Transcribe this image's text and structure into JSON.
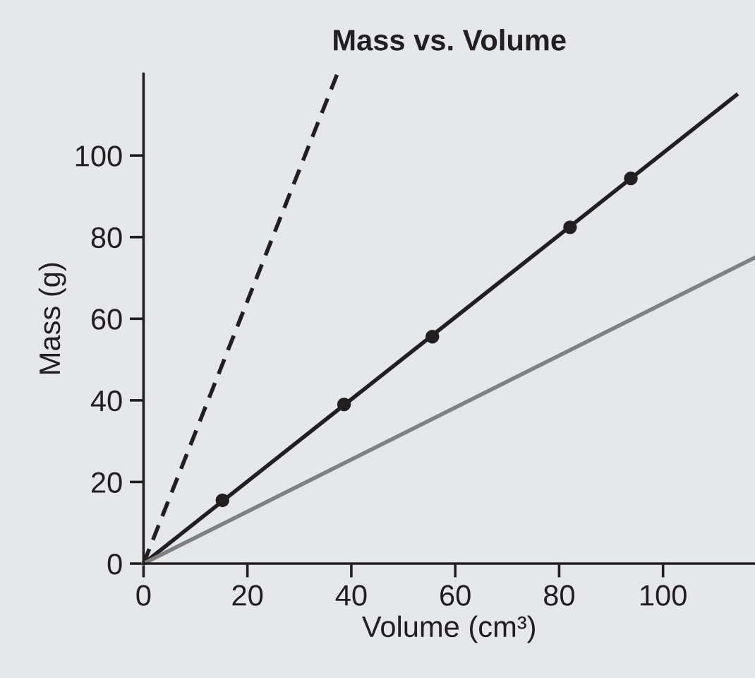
{
  "chart_data": {
    "type": "line",
    "title": "Mass vs. Volume",
    "xlabel": "Volume (cm³)",
    "ylabel": "Mass (g)",
    "xlim": [
      0,
      117.7
    ],
    "ylim": [
      0,
      120
    ],
    "xticks": [
      0,
      20,
      40,
      60,
      80,
      100
    ],
    "yticks": [
      0,
      20,
      40,
      60,
      80,
      100
    ],
    "grid": false,
    "legend": false,
    "series": [
      {
        "x": [
          0,
          37.3
        ],
        "values": [
          0,
          120
        ],
        "color": "#231f20",
        "line_style": "dashed",
        "marker": "none"
      },
      {
        "x": [
          0,
          114.1
        ],
        "values": [
          0,
          114.8
        ],
        "color": "#231f20",
        "line_style": "solid",
        "marker": "none"
      },
      {
        "x": [
          0,
          117.7
        ],
        "values": [
          0,
          75
        ],
        "color": "#808080",
        "line_style": "solid",
        "marker": "none"
      },
      {
        "type": "scatter",
        "x": [
          15.2,
          38.6,
          55.6,
          82.1,
          93.8
        ],
        "values": [
          15.5,
          39.0,
          55.6,
          82.4,
          94.4
        ],
        "color": "#231f20",
        "marker": "circle"
      }
    ]
  }
}
